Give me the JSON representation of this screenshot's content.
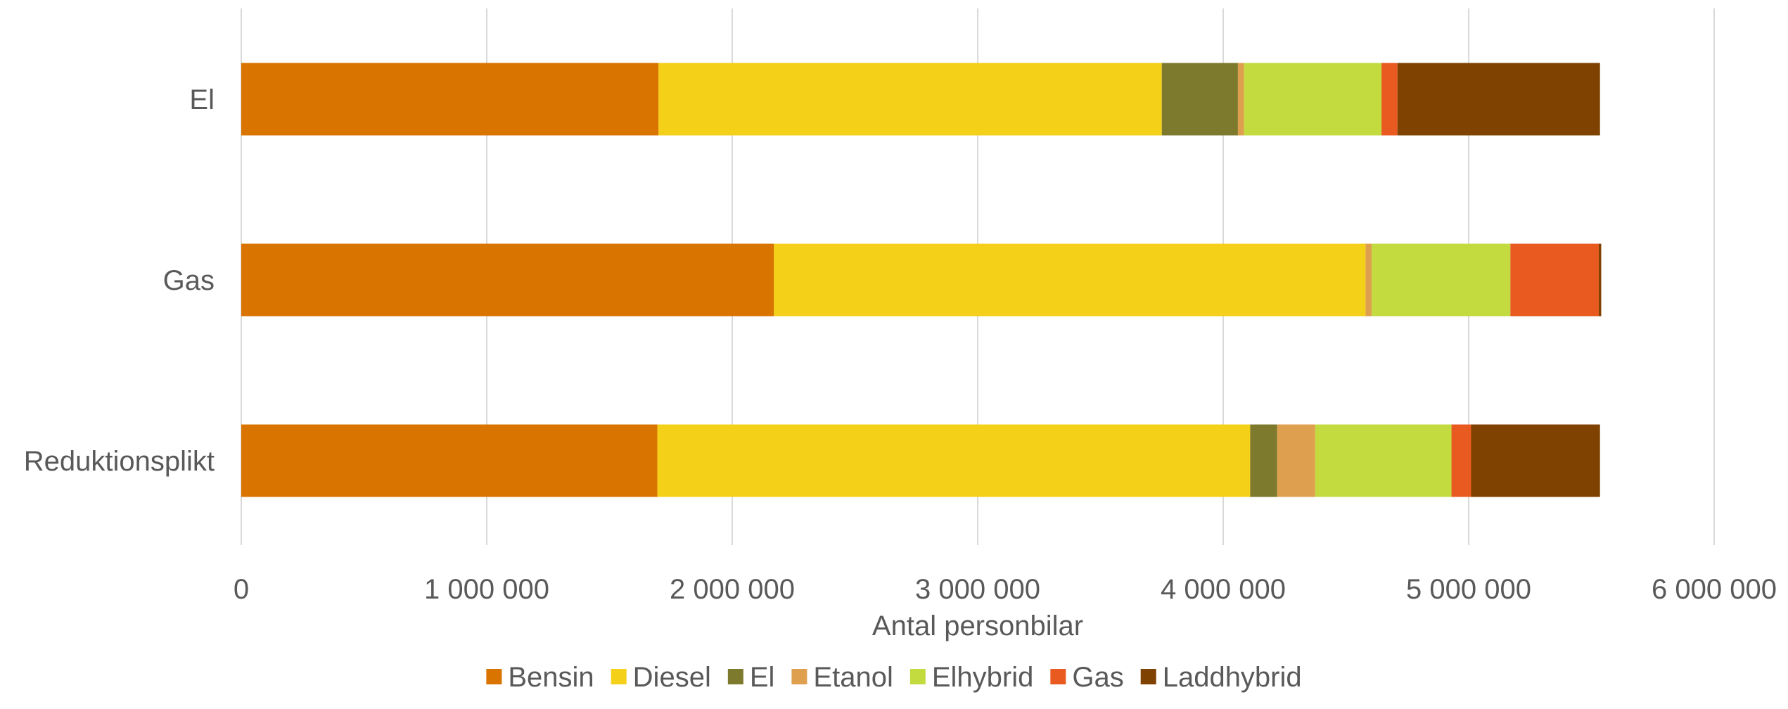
{
  "chart_data": {
    "type": "bar",
    "orientation": "horizontal",
    "stacked": true,
    "title": "",
    "xlabel": "Antal personbilar",
    "ylabel": "",
    "xlim": [
      0,
      6000000
    ],
    "x_ticks": [
      0,
      1000000,
      2000000,
      3000000,
      4000000,
      5000000,
      6000000
    ],
    "x_tick_labels": [
      "0",
      "1 000 000",
      "2 000 000",
      "3 000 000",
      "4 000 000",
      "5 000 000",
      "6 000 000"
    ],
    "grid": "vertical",
    "legend_position": "bottom",
    "categories": [
      "El",
      "Gas",
      "Reduktionsplikt"
    ],
    "series": [
      {
        "name": "Bensin",
        "color": "#D97400",
        "values": [
          1700000,
          2170000,
          1695000
        ]
      },
      {
        "name": "Diesel",
        "color": "#F5D019",
        "values": [
          2050000,
          2410000,
          2415000
        ]
      },
      {
        "name": "El",
        "color": "#7E7A2D",
        "values": [
          310000,
          0,
          110000
        ]
      },
      {
        "name": "Etanol",
        "color": "#DEA04F",
        "values": [
          25000,
          25000,
          155000
        ]
      },
      {
        "name": "Elhybrid",
        "color": "#C3DB3F",
        "values": [
          560000,
          565000,
          555000
        ]
      },
      {
        "name": "Gas",
        "color": "#E95A20",
        "values": [
          65000,
          360000,
          80000
        ]
      },
      {
        "name": "Laddhybrid",
        "color": "#7F4201",
        "values": [
          825000,
          10000,
          525000
        ]
      }
    ]
  },
  "colors": {
    "gridline": "#D9D9D9",
    "text": "#595959",
    "background": "#FFFFFF"
  }
}
